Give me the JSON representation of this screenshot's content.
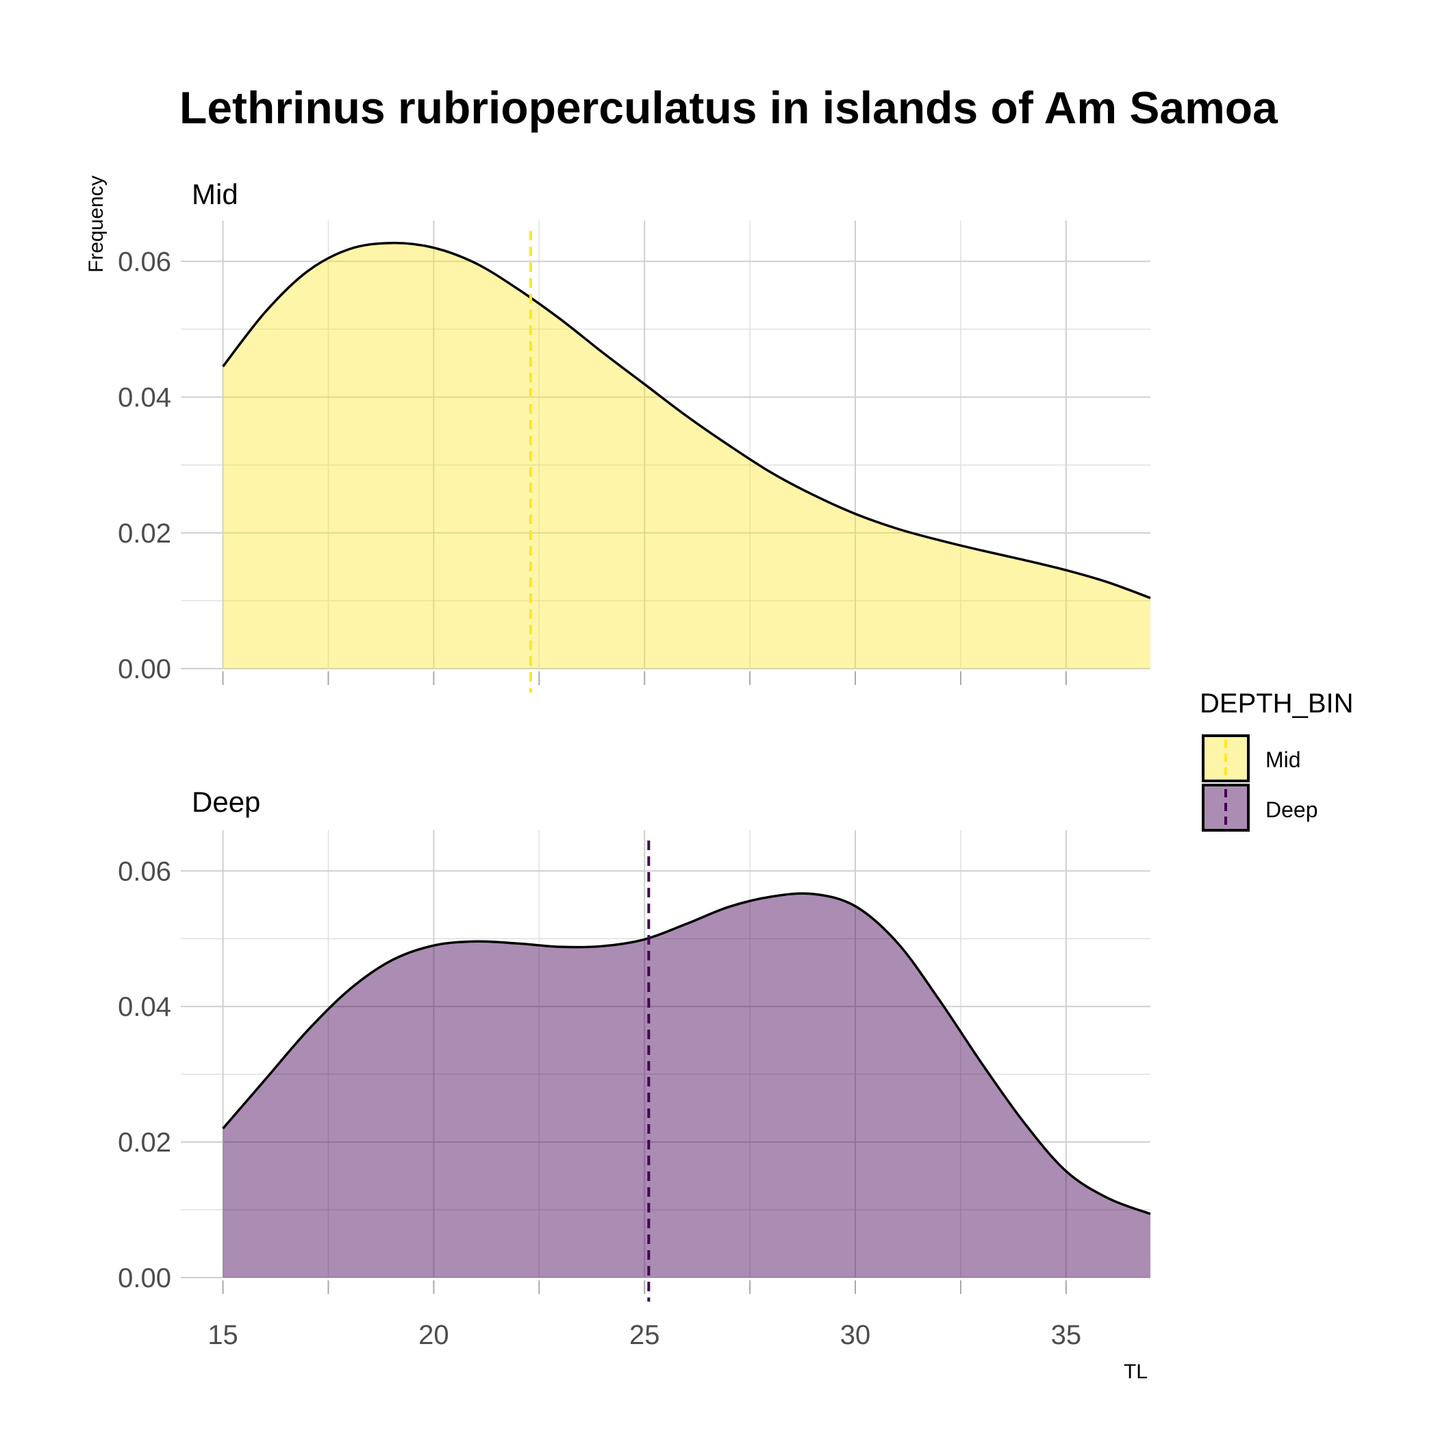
{
  "chart_data": {
    "type": "area",
    "title": "Lethrinus rubrioperculatus in islands of Am Samoa",
    "xlabel": "TL",
    "ylabel": "Frequency",
    "xlim": [
      14,
      37
    ],
    "x_ticks": [
      15,
      20,
      25,
      30,
      35
    ],
    "x_tick_labels": [
      "15",
      "20",
      "25",
      "30",
      "35"
    ],
    "ylim": [
      0,
      0.066
    ],
    "y_ticks": [
      0,
      0.02,
      0.04,
      0.06
    ],
    "y_tick_labels": [
      "0.00",
      "0.02",
      "0.04",
      "0.06"
    ],
    "grid": true,
    "legend": {
      "title": "DEPTH_BIN",
      "position": "right",
      "entries": [
        "Mid",
        "Deep"
      ]
    },
    "panels": [
      {
        "name": "Mid",
        "fill": "#FDE725",
        "fill_opacity": 0.4,
        "mean_line_color": "#FDE725",
        "mean": 22.3,
        "x": [
          15,
          16,
          17,
          18,
          19,
          20,
          21,
          22,
          23,
          24,
          25,
          26,
          27,
          28,
          29,
          30,
          31,
          32,
          33,
          34,
          35,
          36,
          37
        ],
        "y": [
          0.0445,
          0.0525,
          0.0585,
          0.0618,
          0.0627,
          0.062,
          0.0597,
          0.0559,
          0.0515,
          0.0466,
          0.0419,
          0.0372,
          0.0329,
          0.0289,
          0.0256,
          0.0228,
          0.0206,
          0.0189,
          0.0174,
          0.016,
          0.0145,
          0.0127,
          0.0104
        ]
      },
      {
        "name": "Deep",
        "fill": "#440154",
        "fill_opacity": 0.45,
        "mean_line_color": "#440154",
        "mean": 25.1,
        "x": [
          15,
          16,
          17,
          18,
          19,
          20,
          21,
          22,
          23,
          24,
          25,
          26,
          27,
          28,
          29,
          30,
          31,
          32,
          33,
          34,
          35,
          36,
          37
        ],
        "y": [
          0.022,
          0.0292,
          0.0364,
          0.0425,
          0.0468,
          0.049,
          0.0496,
          0.0493,
          0.0488,
          0.0489,
          0.0499,
          0.0522,
          0.0547,
          0.0562,
          0.0566,
          0.0548,
          0.0494,
          0.0409,
          0.0316,
          0.0229,
          0.0157,
          0.0117,
          0.0094
        ]
      }
    ]
  }
}
